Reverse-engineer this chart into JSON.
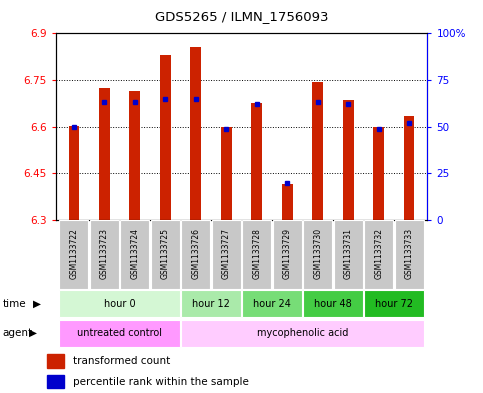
{
  "title": "GDS5265 / ILMN_1756093",
  "samples": [
    "GSM1133722",
    "GSM1133723",
    "GSM1133724",
    "GSM1133725",
    "GSM1133726",
    "GSM1133727",
    "GSM1133728",
    "GSM1133729",
    "GSM1133730",
    "GSM1133731",
    "GSM1133732",
    "GSM1133733"
  ],
  "transformed_counts": [
    6.603,
    6.725,
    6.715,
    6.83,
    6.855,
    6.598,
    6.675,
    6.415,
    6.745,
    6.685,
    6.598,
    6.635
  ],
  "percentile_ranks": [
    50,
    63,
    63,
    65,
    65,
    49,
    62,
    20,
    63,
    62,
    49,
    52
  ],
  "ymin": 6.3,
  "ymax": 6.9,
  "yticks": [
    6.3,
    6.45,
    6.6,
    6.75,
    6.9
  ],
  "ytick_labels": [
    "6.3",
    "6.45",
    "6.6",
    "6.75",
    "6.9"
  ],
  "right_yticks": [
    0,
    25,
    50,
    75,
    100
  ],
  "right_ytick_labels": [
    "0",
    "25",
    "50",
    "75",
    "100%"
  ],
  "bar_color": "#cc2200",
  "percentile_color": "#0000cc",
  "time_groups": [
    {
      "label": "hour 0",
      "start": 0,
      "end": 3,
      "color": "#d4f7d4"
    },
    {
      "label": "hour 12",
      "start": 4,
      "end": 5,
      "color": "#aaeaaa"
    },
    {
      "label": "hour 24",
      "start": 6,
      "end": 7,
      "color": "#77dd77"
    },
    {
      "label": "hour 48",
      "start": 8,
      "end": 9,
      "color": "#44cc44"
    },
    {
      "label": "hour 72",
      "start": 10,
      "end": 11,
      "color": "#22bb22"
    }
  ],
  "agent_groups": [
    {
      "label": "untreated control",
      "start": 0,
      "end": 3,
      "color": "#ff99ff"
    },
    {
      "label": "mycophenolic acid",
      "start": 4,
      "end": 11,
      "color": "#ffccff"
    }
  ],
  "legend_items": [
    {
      "label": "transformed count",
      "color": "#cc2200"
    },
    {
      "label": "percentile rank within the sample",
      "color": "#0000cc"
    }
  ],
  "sample_bg_color": "#c8c8c8",
  "bar_width": 0.35
}
